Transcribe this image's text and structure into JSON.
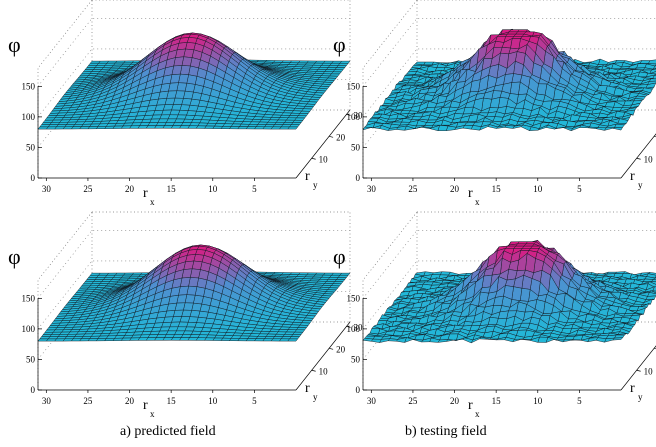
{
  "chart_data": [
    {
      "type": "surface",
      "id": "a-top",
      "zlabel": "φ",
      "xlabel": "r",
      "xlabel_sub": "x",
      "ylabel": "r",
      "ylabel_sub": "y",
      "zticks": [
        "0",
        "50",
        "100",
        "150"
      ],
      "xticks": [
        "30",
        "25",
        "20",
        "15",
        "10",
        "5"
      ],
      "yticks": [
        "10",
        "20",
        "30"
      ],
      "zlim": [
        0,
        180
      ],
      "xlim": [
        1,
        32
      ],
      "ylim": [
        1,
        32
      ],
      "base_level": 80,
      "peak": 178,
      "peak_center": [
        17,
        16
      ],
      "peak_width": 5.5,
      "noise": 0,
      "clip": null
    },
    {
      "type": "surface",
      "id": "b-top",
      "zlabel": "φ",
      "xlabel": "r",
      "xlabel_sub": "x",
      "ylabel": "r",
      "ylabel_sub": "y",
      "zticks": [
        "0",
        "50",
        "100",
        "150"
      ],
      "xticks": [
        "30",
        "25",
        "20",
        "15",
        "10",
        "5"
      ],
      "yticks": [
        "10",
        "20",
        "30"
      ],
      "zlim": [
        0,
        180
      ],
      "xlim": [
        1,
        32
      ],
      "ylim": [
        1,
        32
      ],
      "base_level": 80,
      "peak": 190,
      "peak_center": [
        17,
        16
      ],
      "peak_width": 5.0,
      "noise": 12,
      "clip": 178
    },
    {
      "type": "surface",
      "id": "a-bottom",
      "zlabel": "φ",
      "xlabel": "r",
      "xlabel_sub": "x",
      "ylabel": "r",
      "ylabel_sub": "y",
      "zticks": [
        "0",
        "50",
        "100",
        "150"
      ],
      "xticks": [
        "30",
        "25",
        "20",
        "15",
        "10",
        "5"
      ],
      "yticks": [
        "10",
        "20",
        "30"
      ],
      "zlim": [
        0,
        180
      ],
      "xlim": [
        1,
        32
      ],
      "ylim": [
        1,
        32
      ],
      "base_level": 80,
      "peak": 178,
      "peak_center": [
        16,
        16
      ],
      "peak_width": 5.5,
      "noise": 0,
      "clip": null
    },
    {
      "type": "surface",
      "id": "b-bottom",
      "zlabel": "φ",
      "xlabel": "r",
      "xlabel_sub": "x",
      "ylabel": "r",
      "ylabel_sub": "y",
      "zticks": [
        "0",
        "50",
        "100",
        "150"
      ],
      "xticks": [
        "30",
        "25",
        "20",
        "15",
        "10",
        "5"
      ],
      "yticks": [
        "10",
        "20",
        "30"
      ],
      "zlim": [
        0,
        180
      ],
      "xlim": [
        1,
        32
      ],
      "ylim": [
        1,
        32
      ],
      "base_level": 80,
      "peak": 190,
      "peak_center": [
        16,
        16
      ],
      "peak_width": 5.0,
      "noise": 12,
      "clip": 178
    }
  ],
  "captions": {
    "a": "a) predicted field",
    "b": "b) testing field"
  },
  "colors": {
    "low": "#22b8d8",
    "mid": "#4f8fd0",
    "high": "#e0157f",
    "grid_line": "#101820",
    "box_dots": "#777777"
  }
}
